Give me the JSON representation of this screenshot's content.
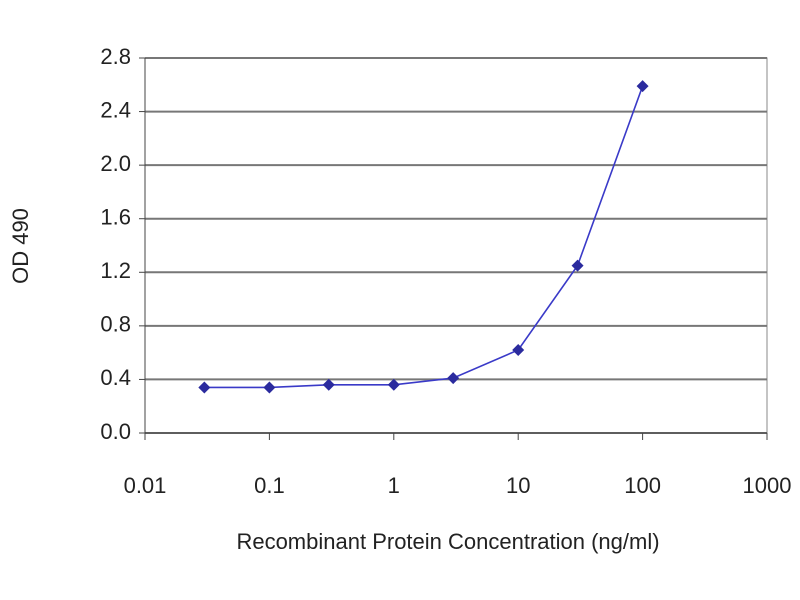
{
  "chart_data": {
    "type": "line",
    "x_label": "Recombinant Protein Concentration (ng/ml)",
    "y_label": "OD 490",
    "x": [
      0.03,
      0.1,
      0.3,
      1,
      3,
      10,
      30,
      100
    ],
    "series": [
      {
        "color": "#2b2b9e",
        "values": [
          0.34,
          0.34,
          0.36,
          0.36,
          0.41,
          0.62,
          1.25,
          2.59
        ]
      }
    ],
    "xlim": [
      0.01,
      1000
    ],
    "xticks": [
      0.01,
      0.1,
      1,
      10,
      100,
      1000
    ],
    "xscale": "log",
    "ylim": [
      0,
      2.8
    ],
    "yticks": [
      {
        "value": 0,
        "label": "0.0"
      },
      0.4,
      0.8,
      1.2,
      1.6,
      {
        "value": 2,
        "label": "2.0"
      },
      2.4,
      2.8
    ],
    "grid": true
  }
}
